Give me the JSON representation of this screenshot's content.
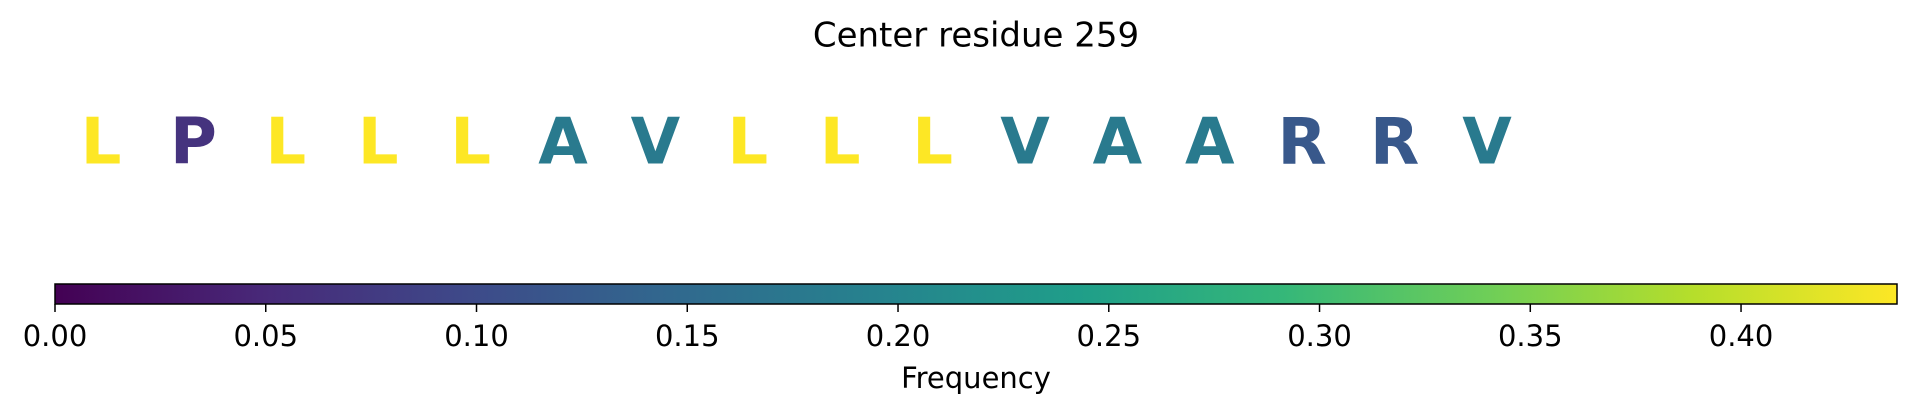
{
  "chart_data": {
    "type": "sequence",
    "title": "Center residue 259",
    "categories": [
      "L",
      "P",
      "L",
      "L",
      "L",
      "A",
      "V",
      "L",
      "L",
      "L",
      "V",
      "A",
      "A",
      "R",
      "R",
      "V"
    ],
    "values": [
      0.437,
      0.065,
      0.437,
      0.437,
      0.437,
      0.18,
      0.18,
      0.437,
      0.437,
      0.437,
      0.18,
      0.18,
      0.18,
      0.12,
      0.12,
      0.18
    ],
    "colormap": "viridis",
    "xlim": [
      0,
      0.437
    ],
    "xticks": [
      {
        "value": 0,
        "label": "0.00"
      },
      {
        "value": 0.05,
        "label": "0.05"
      },
      {
        "value": 0.1,
        "label": "0.10"
      },
      {
        "value": 0.15,
        "label": "0.15"
      },
      {
        "value": 0.2,
        "label": "0.20"
      },
      {
        "value": 0.25,
        "label": "0.25"
      },
      {
        "value": 0.3,
        "label": "0.30"
      },
      {
        "value": 0.35,
        "label": "0.35"
      },
      {
        "value": 0.4,
        "label": "0.40"
      }
    ],
    "xlabel": "Frequency"
  }
}
